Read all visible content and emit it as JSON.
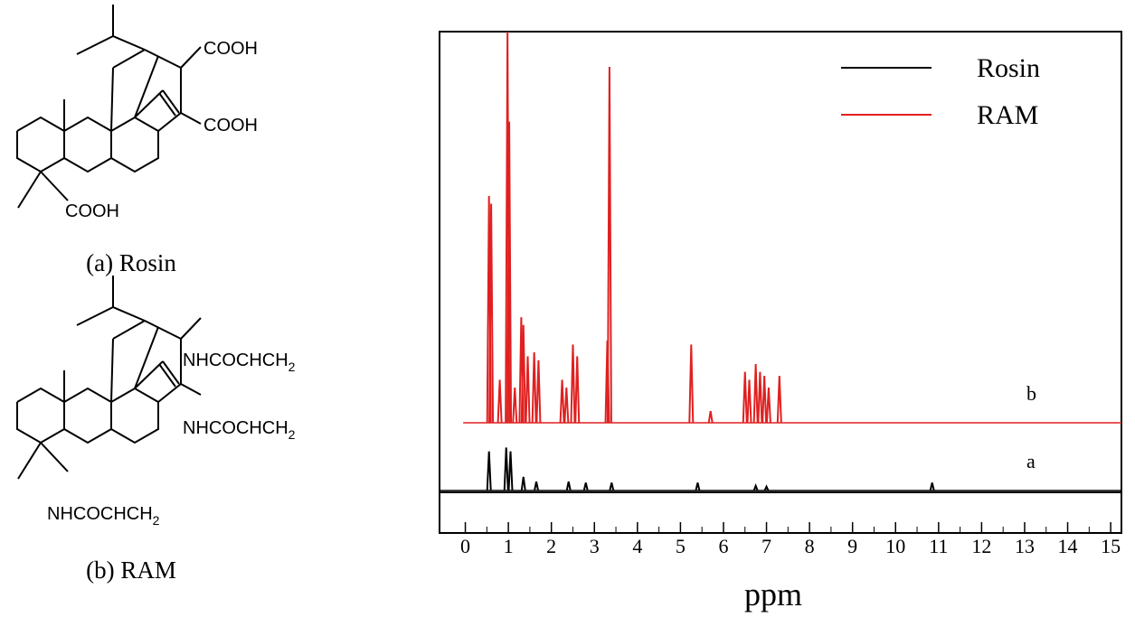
{
  "structures": {
    "rosin": {
      "groups": [
        "COOH",
        "COOH",
        "COOH"
      ],
      "caption": "(a) Rosin"
    },
    "ram": {
      "groups": [
        [
          "NHCOCHCH",
          "2"
        ],
        [
          "NHCOCHCH",
          "2"
        ],
        [
          "NHCOCHCH",
          "2"
        ]
      ],
      "caption": "(b) RAM"
    }
  },
  "chart_data": {
    "type": "spectrum",
    "xlabel": "ppm",
    "xlim": [
      -0.6,
      15.25
    ],
    "xticks": [
      0,
      1,
      2,
      3,
      4,
      5,
      6,
      7,
      8,
      9,
      10,
      11,
      12,
      13,
      14,
      15
    ],
    "legend": "top-right",
    "series": [
      {
        "name": "Rosin",
        "label": "a",
        "color": "#000000",
        "x": [
          0.55,
          0.95,
          1.05,
          1.35,
          1.65,
          2.4,
          2.8,
          3.4,
          5.4,
          6.75,
          7.0,
          10.85
        ],
        "values": [
          10,
          11,
          10,
          3.5,
          2.3,
          2.3,
          2,
          2,
          2,
          1.2,
          1,
          2
        ]
      },
      {
        "name": "RAM",
        "label": "b",
        "color": "#e02020",
        "x": [
          0.55,
          0.6,
          0.8,
          0.98,
          1.02,
          1.15,
          1.3,
          1.35,
          1.45,
          1.6,
          1.7,
          2.25,
          2.35,
          2.5,
          2.6,
          3.3,
          3.35,
          5.25,
          5.7,
          6.5,
          6.6,
          6.75,
          6.85,
          6.95,
          7.05,
          7.3
        ],
        "values": [
          58,
          56,
          11,
          100,
          77,
          9,
          27,
          25,
          17,
          18,
          16,
          11,
          9,
          20,
          17,
          21,
          91,
          20,
          3,
          13,
          11,
          15,
          13,
          12,
          9,
          12
        ]
      }
    ]
  }
}
